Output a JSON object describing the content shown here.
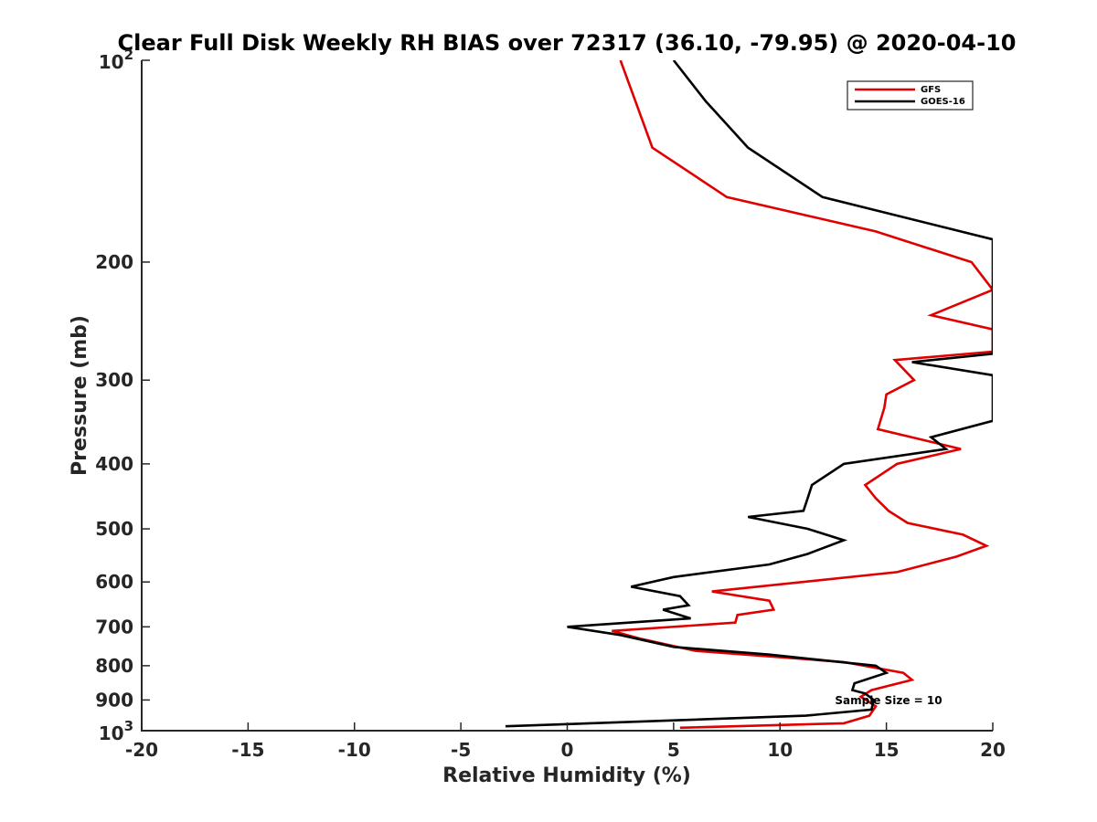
{
  "chart_data": {
    "type": "line",
    "title": "Clear Full Disk Weekly RH BIAS over 72317 (36.10, -79.95) @ 2020-04-10",
    "xlabel": "Relative Humidity (%)",
    "ylabel": "Pressure (mb)",
    "xlim": [
      -20,
      20
    ],
    "ylim": [
      100,
      1000
    ],
    "y_scale": "log",
    "y_reversed": true,
    "grid": false,
    "legend_position": "top-right",
    "x_ticks": [
      "-20",
      "-15",
      "-10",
      "-5",
      "0",
      "5",
      "10",
      "15",
      "20"
    ],
    "y_ticks": [
      "200",
      "300",
      "400",
      "500",
      "600",
      "700",
      "800",
      "900"
    ],
    "y_tick_power_top": {
      "base": "10",
      "exp": "2"
    },
    "y_tick_power_bottom": {
      "base": "10",
      "exp": "3"
    },
    "annotation": "Sample Size = 10",
    "series": [
      {
        "name": "GFS",
        "color": "#e00000",
        "points": [
          [
            2.5,
            100
          ],
          [
            3.2,
            115
          ],
          [
            4.0,
            135
          ],
          [
            7.5,
            160
          ],
          [
            14.5,
            180
          ],
          [
            19.0,
            200
          ],
          [
            20.0,
            220
          ],
          [
            17.1,
            240
          ],
          [
            20.0,
            252
          ],
          [
            20.0,
            272
          ],
          [
            15.4,
            280
          ],
          [
            16.3,
            300
          ],
          [
            15.0,
            315
          ],
          [
            14.9,
            330
          ],
          [
            14.6,
            355
          ],
          [
            18.5,
            380
          ],
          [
            15.5,
            400
          ],
          [
            14.0,
            430
          ],
          [
            14.5,
            450
          ],
          [
            15.1,
            470
          ],
          [
            16.0,
            490
          ],
          [
            18.6,
            510
          ],
          [
            19.7,
            530
          ],
          [
            18.3,
            550
          ],
          [
            15.5,
            580
          ],
          [
            6.8,
            620
          ],
          [
            9.5,
            640
          ],
          [
            9.7,
            660
          ],
          [
            8.0,
            672
          ],
          [
            7.9,
            690
          ],
          [
            2.1,
            710
          ],
          [
            3.5,
            730
          ],
          [
            6.0,
            760
          ],
          [
            13.0,
            790
          ],
          [
            15.8,
            820
          ],
          [
            16.2,
            840
          ],
          [
            14.3,
            870
          ],
          [
            13.8,
            890
          ],
          [
            14.5,
            920
          ],
          [
            14.2,
            950
          ],
          [
            13.0,
            975
          ],
          [
            5.3,
            990
          ]
        ]
      },
      {
        "name": "GOES-16",
        "color": "#000000",
        "points": [
          [
            5.0,
            100
          ],
          [
            6.5,
            115
          ],
          [
            8.5,
            135
          ],
          [
            12.0,
            160
          ],
          [
            20.0,
            185
          ],
          [
            20.0,
            274
          ],
          [
            16.2,
            282
          ],
          [
            20.0,
            295
          ],
          [
            20.0,
            345
          ],
          [
            17.1,
            365
          ],
          [
            17.8,
            380
          ],
          [
            13.0,
            400
          ],
          [
            11.5,
            430
          ],
          [
            11.3,
            450
          ],
          [
            11.1,
            470
          ],
          [
            8.5,
            480
          ],
          [
            11.3,
            500
          ],
          [
            13.0,
            520
          ],
          [
            11.3,
            545
          ],
          [
            9.5,
            565
          ],
          [
            5.0,
            590
          ],
          [
            3.0,
            610
          ],
          [
            5.3,
            630
          ],
          [
            5.7,
            650
          ],
          [
            4.5,
            660
          ],
          [
            5.8,
            680
          ],
          [
            0.0,
            700
          ],
          [
            2.5,
            720
          ],
          [
            5.0,
            750
          ],
          [
            9.5,
            770
          ],
          [
            14.5,
            800
          ],
          [
            15.0,
            820
          ],
          [
            13.5,
            850
          ],
          [
            13.4,
            870
          ],
          [
            14.0,
            880
          ],
          [
            14.4,
            900
          ],
          [
            14.3,
            930
          ],
          [
            11.2,
            950
          ],
          [
            -2.9,
            985
          ]
        ]
      }
    ]
  }
}
